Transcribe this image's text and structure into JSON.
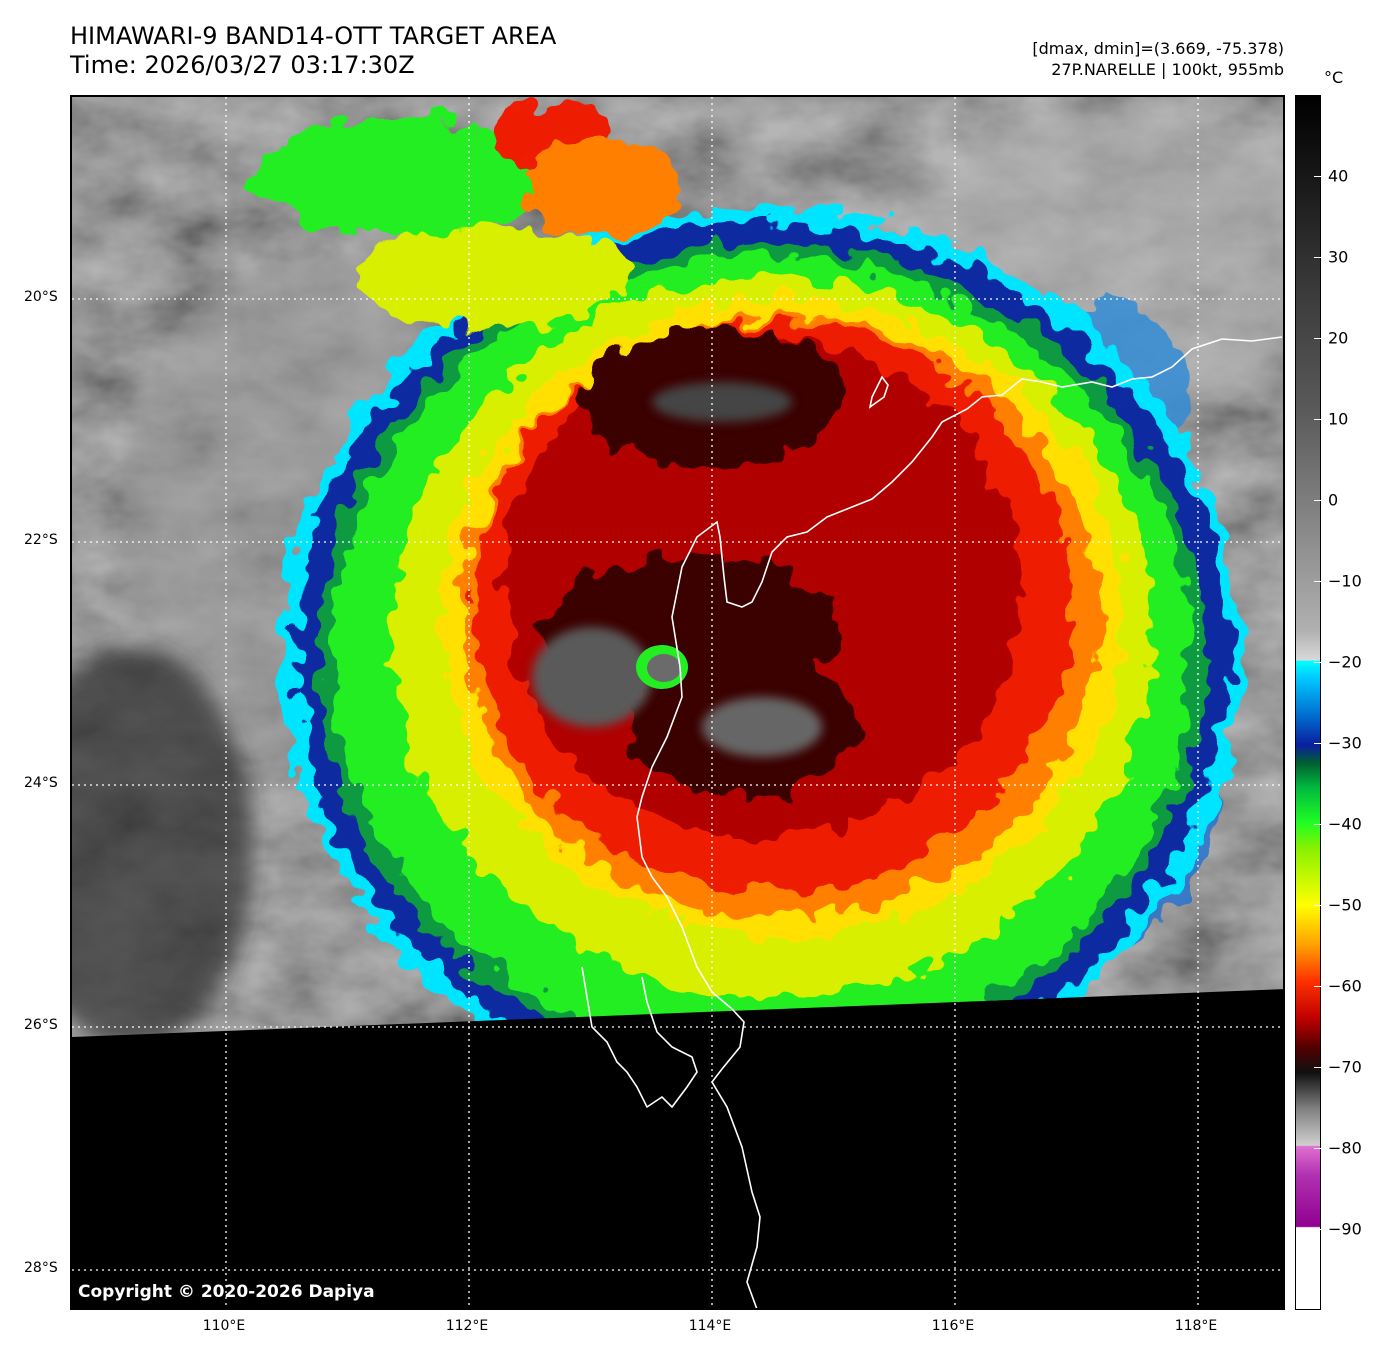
{
  "header": {
    "title_line1": "HIMAWARI-9 BAND14-OTT TARGET AREA",
    "title_line2": "Time: 2026/03/27 03:17:30Z",
    "stats": "[dmax, dmin]=(3.669, -75.378)",
    "storm": "27P.NARELLE | 100kt, 955mb"
  },
  "map": {
    "latitude_labels": [
      "20°S",
      "22°S",
      "24°S",
      "26°S",
      "28°S"
    ],
    "longitude_labels": [
      "110°E",
      "112°E",
      "114°E",
      "116°E",
      "118°E"
    ],
    "eye_location": {
      "lat": -23.1,
      "lon": 113.6
    },
    "copyright": "Copyright © 2020-2026 Dapiya"
  },
  "colorbar": {
    "unit": "°C",
    "ticks": [
      "40",
      "30",
      "20",
      "10",
      "0",
      "−10",
      "−20",
      "−30",
      "−40",
      "−50",
      "−60",
      "−70",
      "−80",
      "−90"
    ],
    "range": [
      -100,
      50
    ]
  },
  "colors": {
    "no_data": "#000000",
    "coastline": "#ffffff",
    "grid": "#ffffff"
  }
}
